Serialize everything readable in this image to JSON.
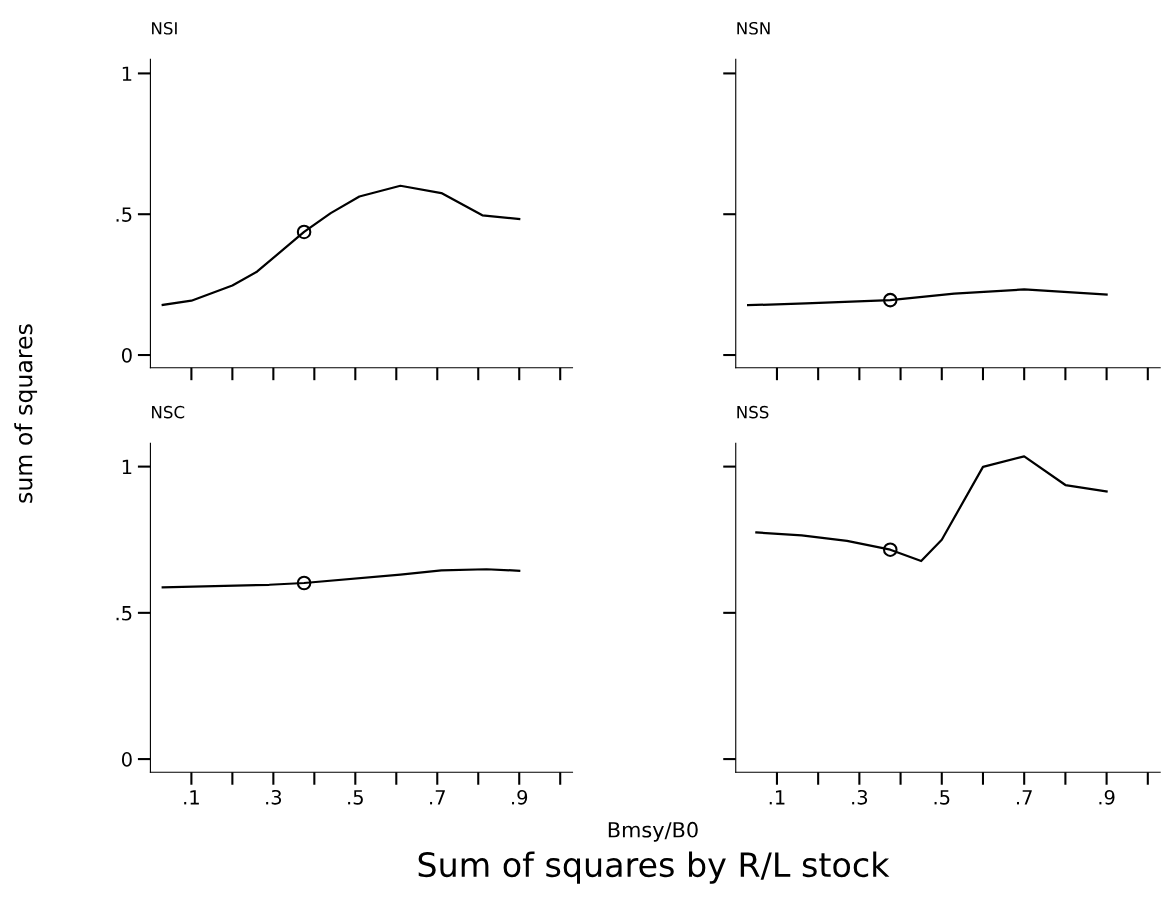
{
  "chart_data": [
    {
      "type": "line",
      "title": "NSI",
      "ylabel": "sum of squares",
      "xlabel": "Bmsy/B0",
      "annotations": [
        "Sum of squares by R/L stock"
      ],
      "tick_labels": "y",
      "xlim": [
        0,
        1.03
      ],
      "ylim": [
        -0.045,
        1.05
      ],
      "xticks": [
        {
          "value": 0.1,
          "label": null
        },
        {
          "value": 0.2,
          "label": null
        },
        {
          "value": 0.3,
          "label": null
        },
        {
          "value": 0.4,
          "label": null
        },
        {
          "value": 0.5,
          "label": null
        },
        {
          "value": 0.6,
          "label": null
        },
        {
          "value": 0.7,
          "label": null
        },
        {
          "value": 0.8,
          "label": null
        },
        {
          "value": 0.9,
          "label": null
        },
        {
          "value": 1.0,
          "label": null
        }
      ],
      "yticks": [
        0,
        {
          "value": 0.5,
          "label": ".5"
        },
        1
      ],
      "series": [
        {
          "color": "#000000",
          "marker": "none",
          "x": [
            0.03,
            0.1,
            0.2,
            0.26,
            0.375,
            0.44,
            0.51,
            0.61,
            0.71,
            0.81,
            0.9
          ],
          "values": [
            0.178,
            0.193,
            0.247,
            0.296,
            0.437,
            0.504,
            0.563,
            0.601,
            0.575,
            0.496,
            0.483
          ]
        },
        {
          "type": "scatter",
          "color": "#000000",
          "marker": "circle",
          "x": [
            0.375
          ],
          "values": [
            0.437
          ]
        }
      ]
    },
    {
      "type": "line",
      "title": "NSN",
      "tick_labels": false,
      "xlim": [
        0,
        1.03
      ],
      "ylim": [
        -0.045,
        1.05
      ],
      "xticks": [
        {
          "value": 0.1,
          "label": null
        },
        {
          "value": 0.2,
          "label": null
        },
        {
          "value": 0.3,
          "label": null
        },
        {
          "value": 0.4,
          "label": null
        },
        {
          "value": 0.5,
          "label": null
        },
        {
          "value": 0.6,
          "label": null
        },
        {
          "value": 0.7,
          "label": null
        },
        {
          "value": 0.8,
          "label": null
        },
        {
          "value": 0.9,
          "label": null
        },
        {
          "value": 1.0,
          "label": null
        }
      ],
      "yticks": [
        {
          "value": 0,
          "label": null
        },
        {
          "value": 0.5,
          "label": null
        },
        {
          "value": 1,
          "label": null
        }
      ],
      "series": [
        {
          "color": "#000000",
          "marker": "none",
          "x": [
            0.03,
            0.17,
            0.375,
            0.53,
            0.7,
            0.9
          ],
          "values": [
            0.177,
            0.183,
            0.195,
            0.218,
            0.233,
            0.215
          ]
        },
        {
          "type": "scatter",
          "color": "#000000",
          "marker": "circle",
          "x": [
            0.375
          ],
          "values": [
            0.195
          ]
        }
      ]
    },
    {
      "type": "line",
      "title": "NSC",
      "xlim": [
        0,
        1.03
      ],
      "ylim": [
        -0.045,
        1.08
      ],
      "xticks": [
        {
          "value": 0.1,
          "label": ".1"
        },
        {
          "value": 0.2,
          "label": null
        },
        {
          "value": 0.3,
          "label": ".3"
        },
        {
          "value": 0.4,
          "label": null
        },
        {
          "value": 0.5,
          "label": ".5"
        },
        {
          "value": 0.6,
          "label": null
        },
        {
          "value": 0.7,
          "label": ".7"
        },
        {
          "value": 0.8,
          "label": null
        },
        {
          "value": 0.9,
          "label": ".9"
        },
        {
          "value": 1.0,
          "label": null
        }
      ],
      "yticks": [
        0,
        {
          "value": 0.5,
          "label": ".5"
        },
        1
      ],
      "series": [
        {
          "color": "#000000",
          "marker": "none",
          "x": [
            0.03,
            0.29,
            0.375,
            0.61,
            0.71,
            0.82,
            0.9
          ],
          "values": [
            0.587,
            0.596,
            0.602,
            0.631,
            0.645,
            0.649,
            0.644
          ]
        },
        {
          "type": "scatter",
          "color": "#000000",
          "marker": "circle",
          "x": [
            0.375
          ],
          "values": [
            0.602
          ]
        }
      ]
    },
    {
      "type": "line",
      "title": "NSS",
      "tick_labels": "x",
      "xlim": [
        0,
        1.03
      ],
      "ylim": [
        -0.045,
        1.08
      ],
      "xticks": [
        {
          "value": 0.1,
          "label": ".1"
        },
        {
          "value": 0.2,
          "label": null
        },
        {
          "value": 0.3,
          "label": ".3"
        },
        {
          "value": 0.4,
          "label": null
        },
        {
          "value": 0.5,
          "label": ".5"
        },
        {
          "value": 0.6,
          "label": null
        },
        {
          "value": 0.7,
          "label": ".7"
        },
        {
          "value": 0.8,
          "label": null
        },
        {
          "value": 0.9,
          "label": ".9"
        },
        {
          "value": 1.0,
          "label": null
        }
      ],
      "yticks": [
        {
          "value": 0,
          "label": null
        },
        {
          "value": 0.5,
          "label": null
        },
        {
          "value": 1,
          "label": null
        }
      ],
      "series": [
        {
          "color": "#000000",
          "marker": "none",
          "x": [
            0.05,
            0.16,
            0.27,
            0.375,
            0.45,
            0.5,
            0.6,
            0.7,
            0.8,
            0.9
          ],
          "values": [
            0.775,
            0.765,
            0.746,
            0.716,
            0.677,
            0.75,
            0.999,
            1.035,
            0.937,
            0.915
          ]
        },
        {
          "type": "scatter",
          "color": "#000000",
          "marker": "circle",
          "x": [
            0.375
          ],
          "values": [
            0.716
          ]
        }
      ]
    }
  ]
}
